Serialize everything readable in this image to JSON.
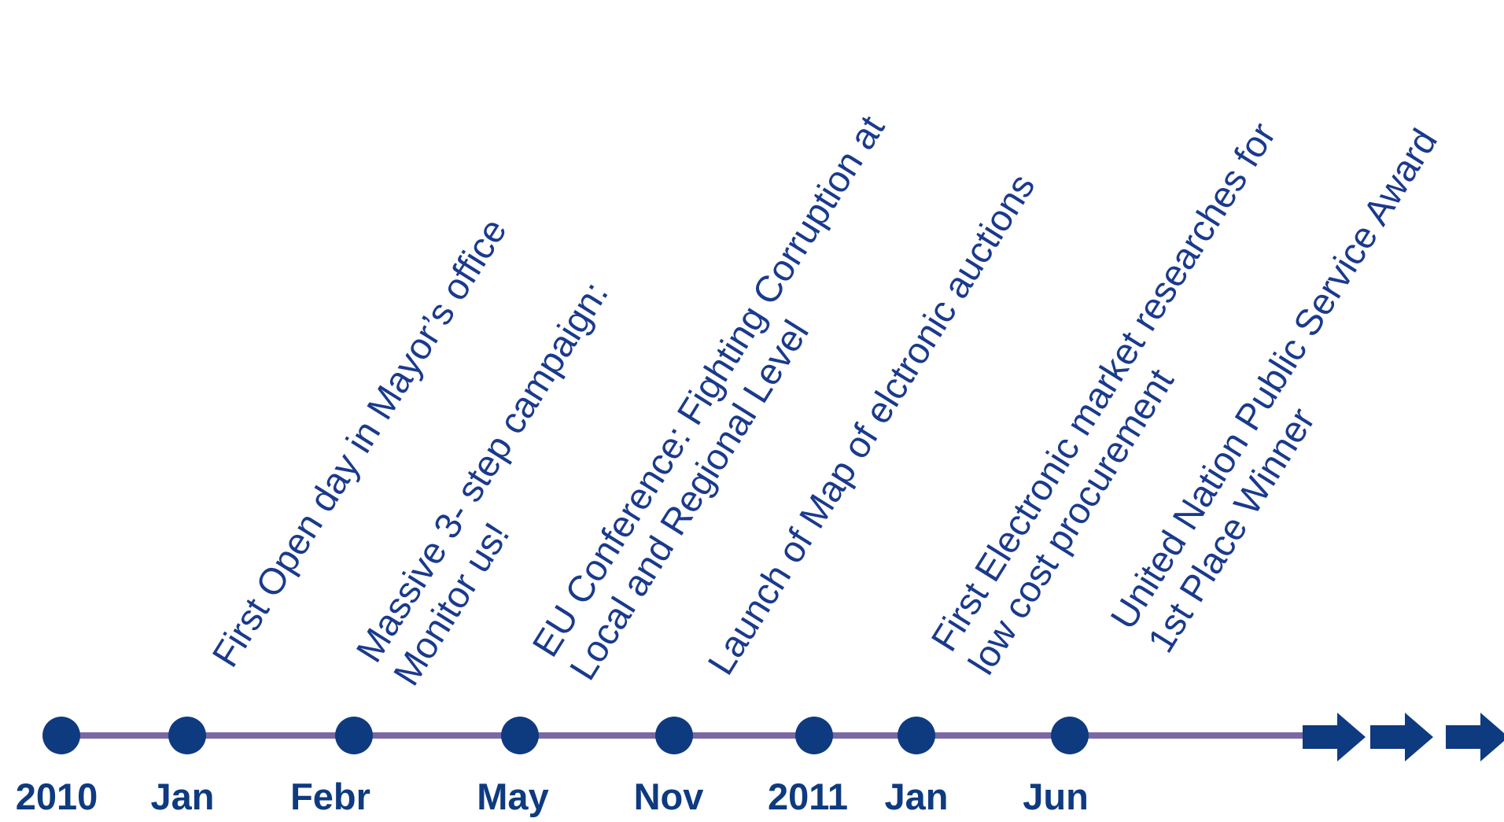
{
  "colors": {
    "dot": "#0e3a80",
    "line": "#7a67a3",
    "label_text": "#1a3a8c",
    "date_text": "#0e3a80"
  },
  "dates": [
    "2010",
    "Jan",
    "Febr",
    "May",
    "Nov",
    "2011",
    "Jan",
    "Jun"
  ],
  "events": [
    {
      "lines": [
        "First Open day in Mayor’s office"
      ]
    },
    {
      "lines": [
        "Massive 3- step campaign:",
        "Monitor us!"
      ]
    },
    {
      "lines": [
        "EU Conference: Fighting Corruption at",
        "Local and Regional Level"
      ]
    },
    {
      "lines": [
        "Launch of Map of elctronic auctions"
      ]
    },
    {
      "lines": [
        "First Electronic market researches for",
        "low cost procurement"
      ]
    },
    {
      "lines": [
        "United Nation Public Service Award",
        "1st Place Winner"
      ]
    }
  ],
  "arrows": [
    "arrow-right-icon",
    "arrow-right-icon",
    "arrow-right-icon"
  ]
}
